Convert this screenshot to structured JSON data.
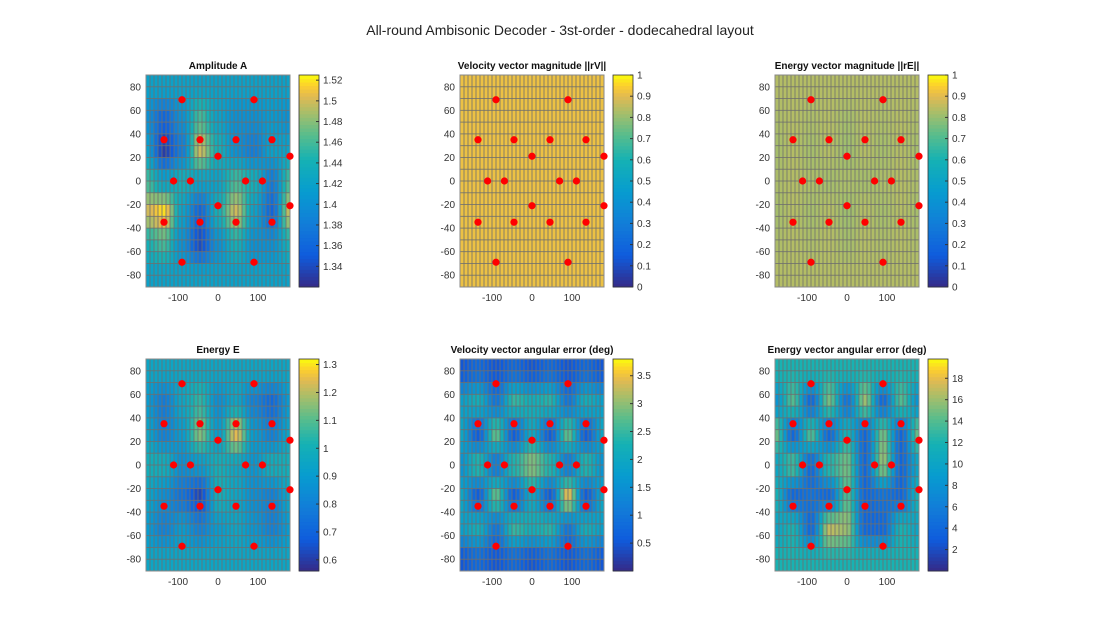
{
  "figure_title": "All-round Ambisonic Decoder - 3st-order - dodecahedral layout",
  "chart_data": [
    {
      "type": "heatmap",
      "title": "Amplitude A",
      "xlim": [
        -180,
        180
      ],
      "ylim": [
        -90,
        90
      ],
      "xticks": [
        -100,
        0,
        100
      ],
      "yticks": [
        80,
        60,
        40,
        20,
        0,
        -20,
        -40,
        -60,
        -80
      ],
      "clim": [
        1.32,
        1.525
      ],
      "cticks": [
        1.34,
        1.36,
        1.38,
        1.4,
        1.42,
        1.44,
        1.46,
        1.48,
        1.5,
        1.52
      ],
      "grid_az": [
        -180,
        -135,
        -90,
        -45,
        0,
        45,
        90,
        135,
        180
      ],
      "grid_el": [
        80,
        53,
        27,
        0,
        -27,
        -53,
        -80
      ],
      "z": [
        [
          1.42,
          1.42,
          1.42,
          1.42,
          1.42,
          1.42,
          1.42,
          1.42,
          1.42
        ],
        [
          1.4,
          1.36,
          1.4,
          1.46,
          1.42,
          1.4,
          1.4,
          1.41,
          1.4
        ],
        [
          1.42,
          1.33,
          1.38,
          1.5,
          1.44,
          1.4,
          1.38,
          1.42,
          1.42
        ],
        [
          1.46,
          1.42,
          1.44,
          1.42,
          1.42,
          1.46,
          1.44,
          1.38,
          1.46
        ],
        [
          1.5,
          1.52,
          1.42,
          1.36,
          1.44,
          1.5,
          1.42,
          1.36,
          1.5
        ],
        [
          1.44,
          1.46,
          1.4,
          1.34,
          1.4,
          1.44,
          1.4,
          1.4,
          1.44
        ],
        [
          1.42,
          1.42,
          1.42,
          1.42,
          1.42,
          1.42,
          1.42,
          1.42,
          1.42
        ]
      ]
    },
    {
      "type": "heatmap",
      "title": "Velocity vector magnitude ||rV||",
      "xlim": [
        -180,
        180
      ],
      "ylim": [
        -90,
        90
      ],
      "xticks": [
        -100,
        0,
        100
      ],
      "yticks": [
        80,
        60,
        40,
        20,
        0,
        -20,
        -40,
        -60,
        -80
      ],
      "clim": [
        0,
        1
      ],
      "cticks": [
        0,
        0.1,
        0.2,
        0.3,
        0.4,
        0.5,
        0.6,
        0.7,
        0.8,
        0.9,
        1
      ],
      "grid_az": [
        -180,
        -135,
        -90,
        -45,
        0,
        45,
        90,
        135,
        180
      ],
      "grid_el": [
        80,
        53,
        27,
        0,
        -27,
        -53,
        -80
      ],
      "z": [
        [
          0.92,
          0.92,
          0.92,
          0.92,
          0.92,
          0.92,
          0.92,
          0.92,
          0.92
        ],
        [
          0.92,
          0.92,
          0.92,
          0.92,
          0.92,
          0.92,
          0.92,
          0.92,
          0.92
        ],
        [
          0.92,
          0.92,
          0.92,
          0.92,
          0.92,
          0.92,
          0.92,
          0.92,
          0.92
        ],
        [
          0.92,
          0.92,
          0.92,
          0.92,
          0.92,
          0.92,
          0.92,
          0.92,
          0.92
        ],
        [
          0.92,
          0.92,
          0.92,
          0.92,
          0.92,
          0.92,
          0.92,
          0.92,
          0.92
        ],
        [
          0.92,
          0.92,
          0.92,
          0.92,
          0.92,
          0.92,
          0.92,
          0.92,
          0.92
        ],
        [
          0.92,
          0.92,
          0.92,
          0.92,
          0.92,
          0.92,
          0.92,
          0.92,
          0.92
        ]
      ]
    },
    {
      "type": "heatmap",
      "title": "Energy vector magnitude ||rE||",
      "xlim": [
        -180,
        180
      ],
      "ylim": [
        -90,
        90
      ],
      "xticks": [
        -100,
        0,
        100
      ],
      "yticks": [
        80,
        60,
        40,
        20,
        0,
        -20,
        -40,
        -60,
        -80
      ],
      "clim": [
        0,
        1
      ],
      "cticks": [
        0,
        0.1,
        0.2,
        0.3,
        0.4,
        0.5,
        0.6,
        0.7,
        0.8,
        0.9,
        1
      ],
      "grid_az": [
        -180,
        -135,
        -90,
        -45,
        0,
        45,
        90,
        135,
        180
      ],
      "grid_el": [
        80,
        53,
        27,
        0,
        -27,
        -53,
        -80
      ],
      "z": [
        [
          0.84,
          0.84,
          0.84,
          0.84,
          0.84,
          0.84,
          0.84,
          0.84,
          0.84
        ],
        [
          0.83,
          0.84,
          0.83,
          0.84,
          0.82,
          0.84,
          0.83,
          0.84,
          0.83
        ],
        [
          0.82,
          0.84,
          0.82,
          0.84,
          0.81,
          0.84,
          0.82,
          0.84,
          0.82
        ],
        [
          0.83,
          0.84,
          0.83,
          0.82,
          0.83,
          0.82,
          0.83,
          0.84,
          0.83
        ],
        [
          0.82,
          0.84,
          0.82,
          0.84,
          0.81,
          0.84,
          0.82,
          0.84,
          0.82
        ],
        [
          0.83,
          0.84,
          0.83,
          0.84,
          0.82,
          0.84,
          0.83,
          0.84,
          0.83
        ],
        [
          0.84,
          0.84,
          0.84,
          0.84,
          0.84,
          0.84,
          0.84,
          0.84,
          0.84
        ]
      ]
    },
    {
      "type": "heatmap",
      "title": "Energy E",
      "xlim": [
        -180,
        180
      ],
      "ylim": [
        -90,
        90
      ],
      "xticks": [
        -100,
        0,
        100
      ],
      "yticks": [
        80,
        60,
        40,
        20,
        0,
        -20,
        -40,
        -60,
        -80
      ],
      "clim": [
        0.56,
        1.32
      ],
      "cticks": [
        0.6,
        0.7,
        0.8,
        0.9,
        1,
        1.1,
        1.2,
        1.3
      ],
      "grid_az": [
        -180,
        -135,
        -90,
        -45,
        0,
        45,
        90,
        135,
        180
      ],
      "grid_el": [
        80,
        53,
        27,
        0,
        -27,
        -53,
        -80
      ],
      "z": [
        [
          0.95,
          0.95,
          0.95,
          0.95,
          0.95,
          0.95,
          0.95,
          0.95,
          0.95
        ],
        [
          0.9,
          0.78,
          0.95,
          1.05,
          0.85,
          0.95,
          0.8,
          0.72,
          0.9
        ],
        [
          0.95,
          0.8,
          0.9,
          1.15,
          0.9,
          1.25,
          0.9,
          0.8,
          0.95
        ],
        [
          1.0,
          1.0,
          0.85,
          0.9,
          1.0,
          0.95,
          0.88,
          1.0,
          1.0
        ],
        [
          0.95,
          0.85,
          0.75,
          0.62,
          1.0,
          0.95,
          0.85,
          0.8,
          0.95
        ],
        [
          0.9,
          0.8,
          0.9,
          0.8,
          0.9,
          0.95,
          0.88,
          0.8,
          0.9
        ],
        [
          0.95,
          0.95,
          0.95,
          0.95,
          0.95,
          0.95,
          0.95,
          0.95,
          0.95
        ]
      ]
    },
    {
      "type": "heatmap",
      "title": "Velocity vector angular error (deg)",
      "xlim": [
        -180,
        180
      ],
      "ylim": [
        -90,
        90
      ],
      "xticks": [
        -100,
        0,
        100
      ],
      "yticks": [
        80,
        60,
        40,
        20,
        0,
        -20,
        -40,
        -60,
        -80
      ],
      "clim": [
        0,
        3.8
      ],
      "cticks": [
        0.5,
        1,
        1.5,
        2,
        2.5,
        3,
        3.5
      ],
      "grid_az": [
        -180,
        -135,
        -90,
        -45,
        0,
        45,
        90,
        135,
        180
      ],
      "grid_el": [
        80,
        53,
        27,
        0,
        -27,
        -53,
        -80
      ],
      "z": [
        [
          0.5,
          0.8,
          0.5,
          0.8,
          0.5,
          0.8,
          0.5,
          0.8,
          0.5
        ],
        [
          1.8,
          2.2,
          1.0,
          2.5,
          2.2,
          2.4,
          1.0,
          2.2,
          1.8
        ],
        [
          2.0,
          0.6,
          2.8,
          0.6,
          2.0,
          0.6,
          2.8,
          0.6,
          2.0
        ],
        [
          1.5,
          2.5,
          1.0,
          2.5,
          3.0,
          2.5,
          1.0,
          2.5,
          1.5
        ],
        [
          2.0,
          0.6,
          2.8,
          0.6,
          2.0,
          0.6,
          3.5,
          0.6,
          2.0
        ],
        [
          1.8,
          2.2,
          1.0,
          2.5,
          2.2,
          2.4,
          1.0,
          2.2,
          1.8
        ],
        [
          0.5,
          0.8,
          0.5,
          0.8,
          0.5,
          0.8,
          0.5,
          0.8,
          0.5
        ]
      ]
    },
    {
      "type": "heatmap",
      "title": "Energy vector angular error (deg)",
      "xlim": [
        -180,
        180
      ],
      "ylim": [
        -90,
        90
      ],
      "xticks": [
        -100,
        0,
        100
      ],
      "yticks": [
        80,
        60,
        40,
        20,
        0,
        -20,
        -40,
        -60,
        -80
      ],
      "clim": [
        0,
        19.8
      ],
      "cticks": [
        2,
        4,
        6,
        8,
        10,
        12,
        14,
        16,
        18
      ],
      "grid_az": [
        -180,
        -135,
        -90,
        -45,
        0,
        45,
        90,
        135,
        180
      ],
      "grid_el": [
        80,
        53,
        27,
        0,
        -27,
        -53,
        -80
      ],
      "z": [
        [
          12,
          12,
          12,
          12,
          12,
          12,
          12,
          12,
          12
        ],
        [
          8,
          14,
          4,
          15,
          5,
          16,
          4,
          14,
          8
        ],
        [
          15,
          4,
          14,
          4,
          12,
          4,
          15,
          4,
          15
        ],
        [
          10,
          14,
          4,
          13,
          15,
          4,
          16,
          4,
          10
        ],
        [
          12,
          4,
          5,
          4,
          14,
          4,
          5,
          4,
          12
        ],
        [
          10,
          12,
          4,
          17,
          16,
          4,
          4,
          12,
          10
        ],
        [
          12,
          12,
          12,
          12,
          12,
          12,
          12,
          12,
          12
        ]
      ]
    }
  ],
  "speakers": [
    [
      -90,
      69
    ],
    [
      90,
      69
    ],
    [
      -135,
      35
    ],
    [
      -45,
      35
    ],
    [
      45,
      35
    ],
    [
      135,
      35
    ],
    [
      0,
      21
    ],
    [
      180,
      21
    ],
    [
      -111,
      0
    ],
    [
      -69,
      0
    ],
    [
      69,
      0
    ],
    [
      111,
      0
    ],
    [
      0,
      -21
    ],
    [
      180,
      -21
    ],
    [
      -135,
      -35
    ],
    [
      -45,
      -35
    ],
    [
      45,
      -35
    ],
    [
      135,
      -35
    ],
    [
      -90,
      -69
    ],
    [
      90,
      -69
    ]
  ],
  "colors": {
    "speaker": "#ff0000",
    "grid": "#6e6e6e"
  }
}
